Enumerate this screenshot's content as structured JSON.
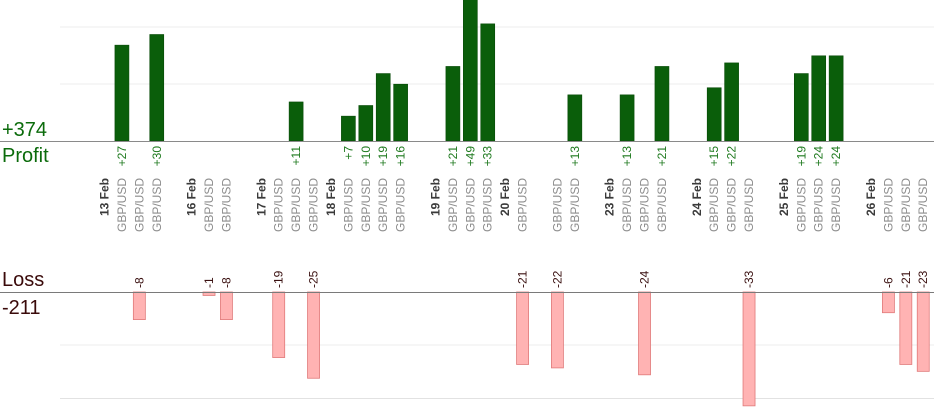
{
  "chart_data": {
    "type": "bar",
    "profit": {
      "total_label": "+374",
      "label": "Profit",
      "color": "#0a5e0a",
      "ylim": [
        0,
        58
      ],
      "trades": [
        {
          "slot": 1,
          "value": 27,
          "label": "+27"
        },
        {
          "slot": 3,
          "value": 30,
          "label": "+30"
        },
        {
          "slot": 11,
          "value": 11,
          "label": "+11"
        },
        {
          "slot": 14,
          "value": 7,
          "label": "+7"
        },
        {
          "slot": 15,
          "value": 10,
          "label": "+10"
        },
        {
          "slot": 16,
          "value": 19,
          "label": "+19"
        },
        {
          "slot": 17,
          "value": 16,
          "label": "+16"
        },
        {
          "slot": 20,
          "value": 21,
          "label": "+21"
        },
        {
          "slot": 21,
          "value": 49,
          "label": "+49"
        },
        {
          "slot": 22,
          "value": 33,
          "label": "+33"
        },
        {
          "slot": 27,
          "value": 13,
          "label": "+13"
        },
        {
          "slot": 30,
          "value": 13,
          "label": "+13"
        },
        {
          "slot": 32,
          "value": 21,
          "label": "+21"
        },
        {
          "slot": 35,
          "value": 15,
          "label": "+15"
        },
        {
          "slot": 36,
          "value": 22,
          "label": "+22"
        },
        {
          "slot": 40,
          "value": 19,
          "label": "+19"
        },
        {
          "slot": 41,
          "value": 24,
          "label": "+24"
        },
        {
          "slot": 42,
          "value": 24,
          "label": "+24"
        }
      ]
    },
    "loss": {
      "total_label": "-211",
      "label": "Loss",
      "color": "#ffb3b3",
      "ylim": [
        0,
        24
      ],
      "trades": [
        {
          "slot": 2,
          "value": -8,
          "label": "-8"
        },
        {
          "slot": 6,
          "value": -1,
          "label": "-1"
        },
        {
          "slot": 7,
          "value": -8,
          "label": "-8"
        },
        {
          "slot": 10,
          "value": -19,
          "label": "-19"
        },
        {
          "slot": 12,
          "value": -25,
          "label": "-25"
        },
        {
          "slot": 24,
          "value": -21,
          "label": "-21"
        },
        {
          "slot": 26,
          "value": -22,
          "label": "-22"
        },
        {
          "slot": 31,
          "value": -24,
          "label": "-24"
        },
        {
          "slot": 37,
          "value": -33,
          "label": "-33"
        },
        {
          "slot": 45,
          "value": -6,
          "label": "-6"
        },
        {
          "slot": 46,
          "value": -21,
          "label": "-21"
        },
        {
          "slot": 47,
          "value": -23,
          "label": "-23"
        }
      ]
    },
    "days": [
      {
        "label": "13 Feb",
        "slots": [
          1,
          2,
          3
        ]
      },
      {
        "label": "16 Feb",
        "slots": [
          6,
          7
        ]
      },
      {
        "label": "17 Feb",
        "slots": [
          10,
          11,
          12
        ]
      },
      {
        "label": "18 Feb",
        "slots": [
          14,
          15,
          16,
          17
        ]
      },
      {
        "label": "19 Feb",
        "slots": [
          20,
          21,
          22
        ]
      },
      {
        "label": "20 Feb",
        "slots": [
          24,
          26,
          27
        ]
      },
      {
        "label": "23 Feb",
        "slots": [
          30,
          31,
          32
        ]
      },
      {
        "label": "24 Feb",
        "slots": [
          35,
          36,
          37
        ]
      },
      {
        "label": "25 Feb",
        "slots": [
          40,
          41,
          42
        ]
      },
      {
        "label": "26 Feb",
        "slots": [
          45,
          46,
          47
        ]
      }
    ],
    "symbol": "GBP/USD",
    "grid": true
  }
}
